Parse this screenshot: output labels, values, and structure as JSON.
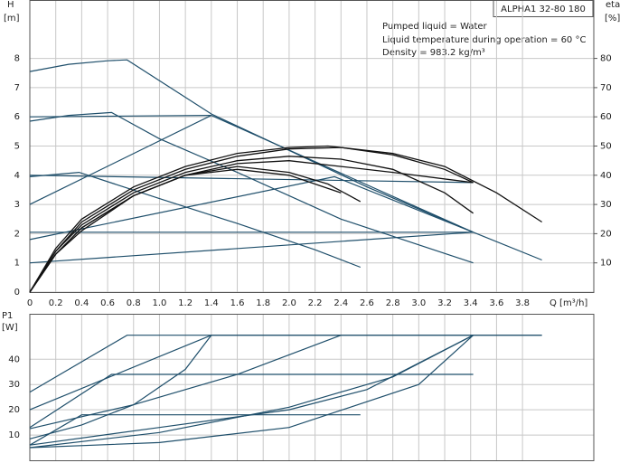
{
  "chart_data": [
    {
      "type": "line",
      "title": "ALPHA1 32-80 180",
      "annotations": [
        "Pumped liquid = Water",
        "Liquid temperature during operation = 60 °C",
        "Density = 983.2 kg/m³"
      ],
      "xlabel": "Q [m³/h]",
      "ylabel": [
        "H",
        "[m]"
      ],
      "y2label": [
        "eta",
        "[%]"
      ],
      "xlim": [
        0,
        4.35
      ],
      "xticks": [
        0,
        0.2,
        0.4,
        0.6,
        0.8,
        {
          "value": 1,
          "label": "1.0"
        },
        1.2,
        1.4,
        1.6,
        1.8,
        {
          "value": 2,
          "label": "2.0"
        },
        2.2,
        2.4,
        2.6,
        2.8,
        {
          "value": 3,
          "label": "3.0"
        },
        3.2,
        3.4,
        3.6,
        3.8
      ],
      "ylim": [
        0,
        10
      ],
      "yticks": [
        0,
        1,
        2,
        3,
        4,
        5,
        6,
        7,
        8
      ],
      "y2lim": [
        0,
        100
      ],
      "y2ticks": [
        10,
        20,
        30,
        40,
        50,
        60,
        70,
        80
      ],
      "grid": true,
      "series": [
        {
          "color": "#1f4f6b",
          "x": [
            0,
            0.3,
            0.6,
            0.75,
            1.4,
            2.0,
            2.6,
            3.42,
            3.95
          ],
          "values": [
            7.55,
            7.8,
            7.92,
            7.95,
            6.1,
            4.85,
            3.6,
            2.05,
            1.1
          ]
        },
        {
          "color": "#1f4f6b",
          "x": [
            0,
            0.3,
            0.63,
            1.0,
            1.6,
            2.4,
            3.42
          ],
          "values": [
            5.85,
            6.05,
            6.15,
            5.25,
            4.1,
            2.5,
            1.0
          ]
        },
        {
          "color": "#1f4f6b",
          "x": [
            0,
            0.38,
            1.0,
            1.6,
            2.2,
            2.55
          ],
          "values": [
            3.95,
            4.1,
            3.2,
            2.35,
            1.45,
            0.85
          ]
        },
        {
          "color": "#1f4f6b",
          "x": [
            0,
            1.4,
            3.42
          ],
          "values": [
            3.0,
            6.05,
            2.05
          ]
        },
        {
          "color": "#1f4f6b",
          "x": [
            0,
            2.35,
            3.42
          ],
          "values": [
            1.8,
            3.95,
            2.05
          ]
        },
        {
          "color": "#1f4f6b",
          "x": [
            0,
            3.42
          ],
          "values": [
            1.0,
            2.05
          ]
        },
        {
          "color": "#1f4f6b",
          "x": [
            0,
            1.4
          ],
          "values": [
            6.0,
            6.05
          ]
        },
        {
          "color": "#1f4f6b",
          "x": [
            0,
            3.42
          ],
          "values": [
            4.0,
            3.75
          ]
        },
        {
          "color": "#1f4f6b",
          "x": [
            0,
            3.42
          ],
          "values": [
            2.05,
            2.05
          ]
        },
        {
          "color": "#111111",
          "axis": "y2",
          "x": [
            0,
            0.2,
            0.4,
            0.8,
            1.2,
            1.6,
            2.0,
            2.3,
            2.8,
            3.2,
            3.6,
            3.95
          ],
          "values": [
            0,
            15,
            25,
            36,
            43,
            47.5,
            49.5,
            50,
            47.5,
            43,
            34,
            24
          ]
        },
        {
          "color": "#111111",
          "axis": "y2",
          "x": [
            0,
            0.2,
            0.4,
            0.8,
            1.2,
            1.6,
            2.0,
            2.4,
            2.8,
            3.2,
            3.42
          ],
          "values": [
            0,
            14,
            24,
            35,
            42,
            46.5,
            49,
            49.5,
            47,
            42,
            37.5
          ]
        },
        {
          "color": "#111111",
          "axis": "y2",
          "x": [
            0,
            0.2,
            0.4,
            0.8,
            1.2,
            1.6,
            2.0,
            2.4,
            2.8,
            3.2,
            3.42
          ],
          "values": [
            0,
            14,
            23,
            34,
            41,
            45,
            46.5,
            45.5,
            42,
            34,
            27
          ]
        },
        {
          "color": "#111111",
          "axis": "y2",
          "x": [
            0,
            0.2,
            0.4,
            0.8,
            1.2,
            1.6,
            2.0,
            2.3,
            2.55
          ],
          "values": [
            0,
            13,
            22,
            33,
            40,
            43,
            41,
            37,
            31
          ]
        },
        {
          "color": "#111111",
          "axis": "y2",
          "x": [
            0,
            0.2,
            0.4,
            0.8,
            1.2,
            1.6,
            2.0,
            2.4
          ],
          "values": [
            0,
            13,
            22,
            33,
            40,
            42,
            40,
            34
          ]
        },
        {
          "color": "#111111",
          "axis": "y2",
          "x": [
            0,
            0.2,
            0.4,
            0.8,
            1.2,
            1.6,
            2.0,
            2.4,
            2.8,
            3.42
          ],
          "values": [
            0,
            13,
            21,
            33,
            40,
            44,
            45,
            43,
            41,
            37.5
          ]
        }
      ]
    },
    {
      "type": "line",
      "ylabel": [
        "P1",
        "[W]"
      ],
      "xlim": [
        0,
        4.35
      ],
      "xticks": [
        0,
        0.2,
        0.4,
        0.6,
        0.8,
        1,
        1.2,
        1.4,
        1.6,
        1.8,
        2,
        2.2,
        2.4,
        2.6,
        2.8,
        3,
        3.2,
        3.4,
        3.6,
        3.8
      ],
      "ylim": [
        0,
        58
      ],
      "yticks": [
        10,
        20,
        30,
        40
      ],
      "grid": true,
      "series": [
        {
          "color": "#1f4f6b",
          "x": [
            0,
            0.75,
            3.95
          ],
          "values": [
            27,
            49.5,
            49.5
          ]
        },
        {
          "color": "#1f4f6b",
          "x": [
            0,
            1.4,
            3.95
          ],
          "values": [
            20,
            49.5,
            49.5
          ]
        },
        {
          "color": "#1f4f6b",
          "x": [
            0,
            0.63,
            3.42
          ],
          "values": [
            13,
            34,
            34
          ]
        },
        {
          "color": "#1f4f6b",
          "x": [
            0,
            0.4,
            2.55
          ],
          "values": [
            6,
            18,
            18
          ]
        },
        {
          "color": "#1f4f6b",
          "x": [
            0,
            0.4,
            0.8,
            1.2,
            1.4
          ],
          "values": [
            8.5,
            14,
            22,
            36,
            49.5
          ]
        },
        {
          "color": "#1f4f6b",
          "x": [
            0,
            0.8,
            1.6,
            2.4
          ],
          "values": [
            12.5,
            22,
            34,
            49.5
          ]
        },
        {
          "color": "#1f4f6b",
          "x": [
            0,
            1.0,
            2.0,
            2.8,
            3.42
          ],
          "values": [
            5,
            11,
            21,
            33,
            49.5
          ]
        },
        {
          "color": "#1f4f6b",
          "x": [
            0,
            1.0,
            2.0,
            3.0,
            3.42
          ],
          "values": [
            5,
            7,
            13,
            30,
            49.5
          ]
        },
        {
          "color": "#1f4f6b",
          "x": [
            0,
            1.0,
            2.0,
            2.6,
            3.42
          ],
          "values": [
            6,
            13,
            20,
            28,
            49.5
          ]
        }
      ]
    }
  ]
}
